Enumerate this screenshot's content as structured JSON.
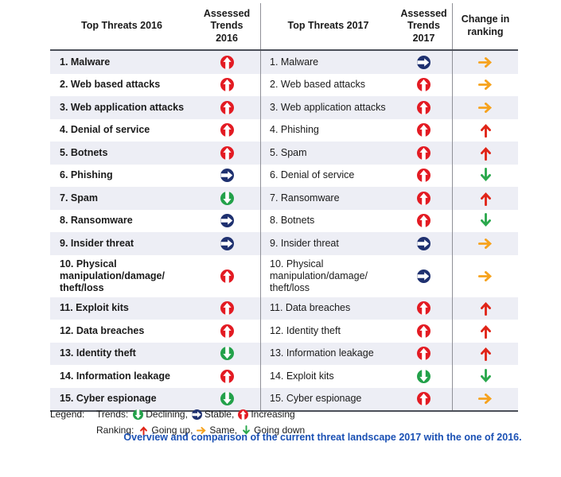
{
  "header": {
    "col_threats_2016": "Top Threats 2016",
    "col_trends_2016": "Assessed Trends 2016",
    "col_threats_2017": "Top Threats 2017",
    "col_trends_2017": "Assessed Trends 2017",
    "col_change": "Change in ranking"
  },
  "rows": [
    {
      "threat_2016": "1. Malware",
      "trend_2016": "increasing",
      "threat_2017": "1. Malware",
      "trend_2017": "stable",
      "ranking_change": "same"
    },
    {
      "threat_2016": "2. Web based attacks",
      "trend_2016": "increasing",
      "threat_2017": "2. Web based attacks",
      "trend_2017": "increasing",
      "ranking_change": "same"
    },
    {
      "threat_2016": "3. Web application attacks",
      "trend_2016": "increasing",
      "threat_2017": "3. Web application attacks",
      "trend_2017": "increasing",
      "ranking_change": "same"
    },
    {
      "threat_2016": "4. Denial of service",
      "trend_2016": "increasing",
      "threat_2017": "4. Phishing",
      "trend_2017": "increasing",
      "ranking_change": "up"
    },
    {
      "threat_2016": "5. Botnets",
      "trend_2016": "increasing",
      "threat_2017": "5. Spam",
      "trend_2017": "increasing",
      "ranking_change": "up"
    },
    {
      "threat_2016": "6. Phishing",
      "trend_2016": "stable",
      "threat_2017": "6. Denial of service",
      "trend_2017": "increasing",
      "ranking_change": "down"
    },
    {
      "threat_2016": "7. Spam",
      "trend_2016": "declining",
      "threat_2017": "7. Ransomware",
      "trend_2017": "increasing",
      "ranking_change": "up"
    },
    {
      "threat_2016": "8. Ransomware",
      "trend_2016": "stable",
      "threat_2017": "8. Botnets",
      "trend_2017": "increasing",
      "ranking_change": "down"
    },
    {
      "threat_2016": "9. Insider threat",
      "trend_2016": "stable",
      "threat_2017": "9. Insider threat",
      "trend_2017": "stable",
      "ranking_change": "same"
    },
    {
      "threat_2016": "10. Physical\nmanipulation/damage/\ntheft/loss",
      "trend_2016": "increasing",
      "threat_2017": "10. Physical\nmanipulation/damage/\ntheft/loss",
      "trend_2017": "stable",
      "ranking_change": "same"
    },
    {
      "threat_2016": "11. Exploit kits",
      "trend_2016": "increasing",
      "threat_2017": "11. Data breaches",
      "trend_2017": "increasing",
      "ranking_change": "up"
    },
    {
      "threat_2016": "12. Data breaches",
      "trend_2016": "increasing",
      "threat_2017": "12. Identity theft",
      "trend_2017": "increasing",
      "ranking_change": "up"
    },
    {
      "threat_2016": "13. Identity theft",
      "trend_2016": "declining",
      "threat_2017": "13. Information leakage",
      "trend_2017": "increasing",
      "ranking_change": "up"
    },
    {
      "threat_2016": "14. Information leakage",
      "trend_2016": "increasing",
      "threat_2017": "14. Exploit kits",
      "trend_2017": "declining",
      "ranking_change": "down"
    },
    {
      "threat_2016": "15. Cyber espionage",
      "trend_2016": "declining",
      "threat_2017": "15. Cyber espionage",
      "trend_2017": "increasing",
      "ranking_change": "same"
    }
  ],
  "legend": {
    "label": "Legend:",
    "trends": {
      "label": "Trends:",
      "items": [
        {
          "icon": "declining",
          "text": "Declining,"
        },
        {
          "icon": "stable",
          "text": "Stable,"
        },
        {
          "icon": "increasing",
          "text": "Increasing"
        }
      ]
    },
    "ranking": {
      "label": "Ranking:",
      "items": [
        {
          "icon": "up",
          "text": "Going up,"
        },
        {
          "icon": "same",
          "text": "Same,"
        },
        {
          "icon": "down",
          "text": "Going down"
        }
      ]
    }
  },
  "caption": "Overview and comparison of the current threat landscape 2017 with the one of 2016.",
  "colors": {
    "trend_increasing": "#e31b23",
    "trend_declining": "#23a14a",
    "trend_stable": "#1f3170",
    "ranking_up": "#e02417",
    "ranking_same": "#f6a21d",
    "ranking_down": "#2aa84c",
    "caption_text": "#1a50b4",
    "row_stripe": "#edeef5"
  }
}
